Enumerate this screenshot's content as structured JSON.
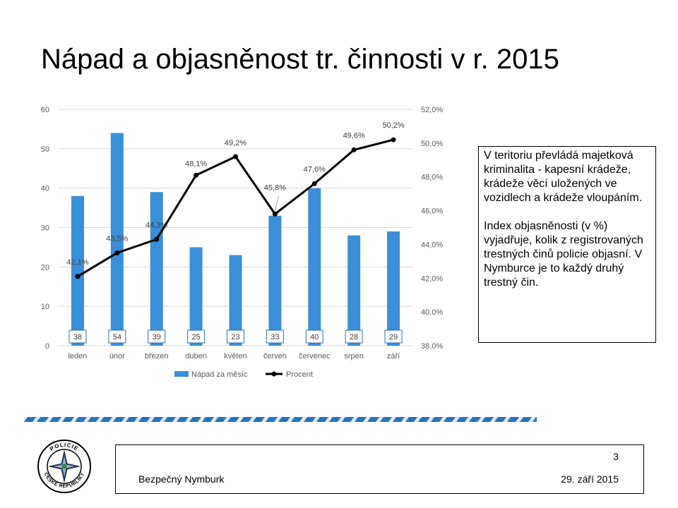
{
  "title": "Nápad a objasněnost tr. činnosti v r. 2015",
  "chart_data": {
    "type": "bar+line",
    "categories": [
      "leden",
      "únor",
      "březen",
      "duben",
      "květen",
      "červen",
      "červenec",
      "srpen",
      "září"
    ],
    "series": [
      {
        "name": "Nápad za měsíc",
        "type": "bar",
        "axis": "left",
        "values": [
          38,
          54,
          39,
          25,
          23,
          33,
          40,
          28,
          29
        ],
        "labels": [
          "38",
          "54",
          "39",
          "25",
          "23",
          "33",
          "40",
          "28",
          "29"
        ]
      },
      {
        "name": "Procent",
        "type": "line",
        "axis": "right",
        "values": [
          42.1,
          43.5,
          44.3,
          48.1,
          49.2,
          45.8,
          47.6,
          49.6,
          50.2
        ],
        "labels": [
          "42,1%",
          "43,5%",
          "44,3%",
          "48,1%",
          "49,2%",
          "45,8%",
          "47,6%",
          "49,6%",
          "50,2%"
        ]
      }
    ],
    "left_axis": {
      "min": 0,
      "max": 60,
      "ticks": [
        "0",
        "10",
        "20",
        "30",
        "40",
        "50",
        "60"
      ]
    },
    "right_axis": {
      "min": 38,
      "max": 52,
      "ticks": [
        "38,0%",
        "40,0%",
        "42,0%",
        "44,0%",
        "46,0%",
        "48,0%",
        "50,0%",
        "52,0%"
      ]
    },
    "grid": true,
    "legend": "bottom",
    "colors": {
      "bar": "#3a8fd8",
      "line": "#000000",
      "grid": "#d9d9d9"
    }
  },
  "side_text": {
    "para1": "V teritoriu převládá majetková kriminalita - kapesní  krádeže, krádeže věcí uložených ve vozidlech a krádeže vloupáním.",
    "para2": "Index objasněnosti (v %) vyjadřuje, kolik z registrovaných trestných činů policie objasní. V Nymburce je to každý druhý trestný čin."
  },
  "footer": {
    "left": "Bezpečný Nymburk",
    "date": "29. září 2015",
    "page": "3"
  },
  "logo": {
    "icon": "police-badge-icon",
    "text": "POLICIE ČESKÉ REPUBLIKY"
  }
}
